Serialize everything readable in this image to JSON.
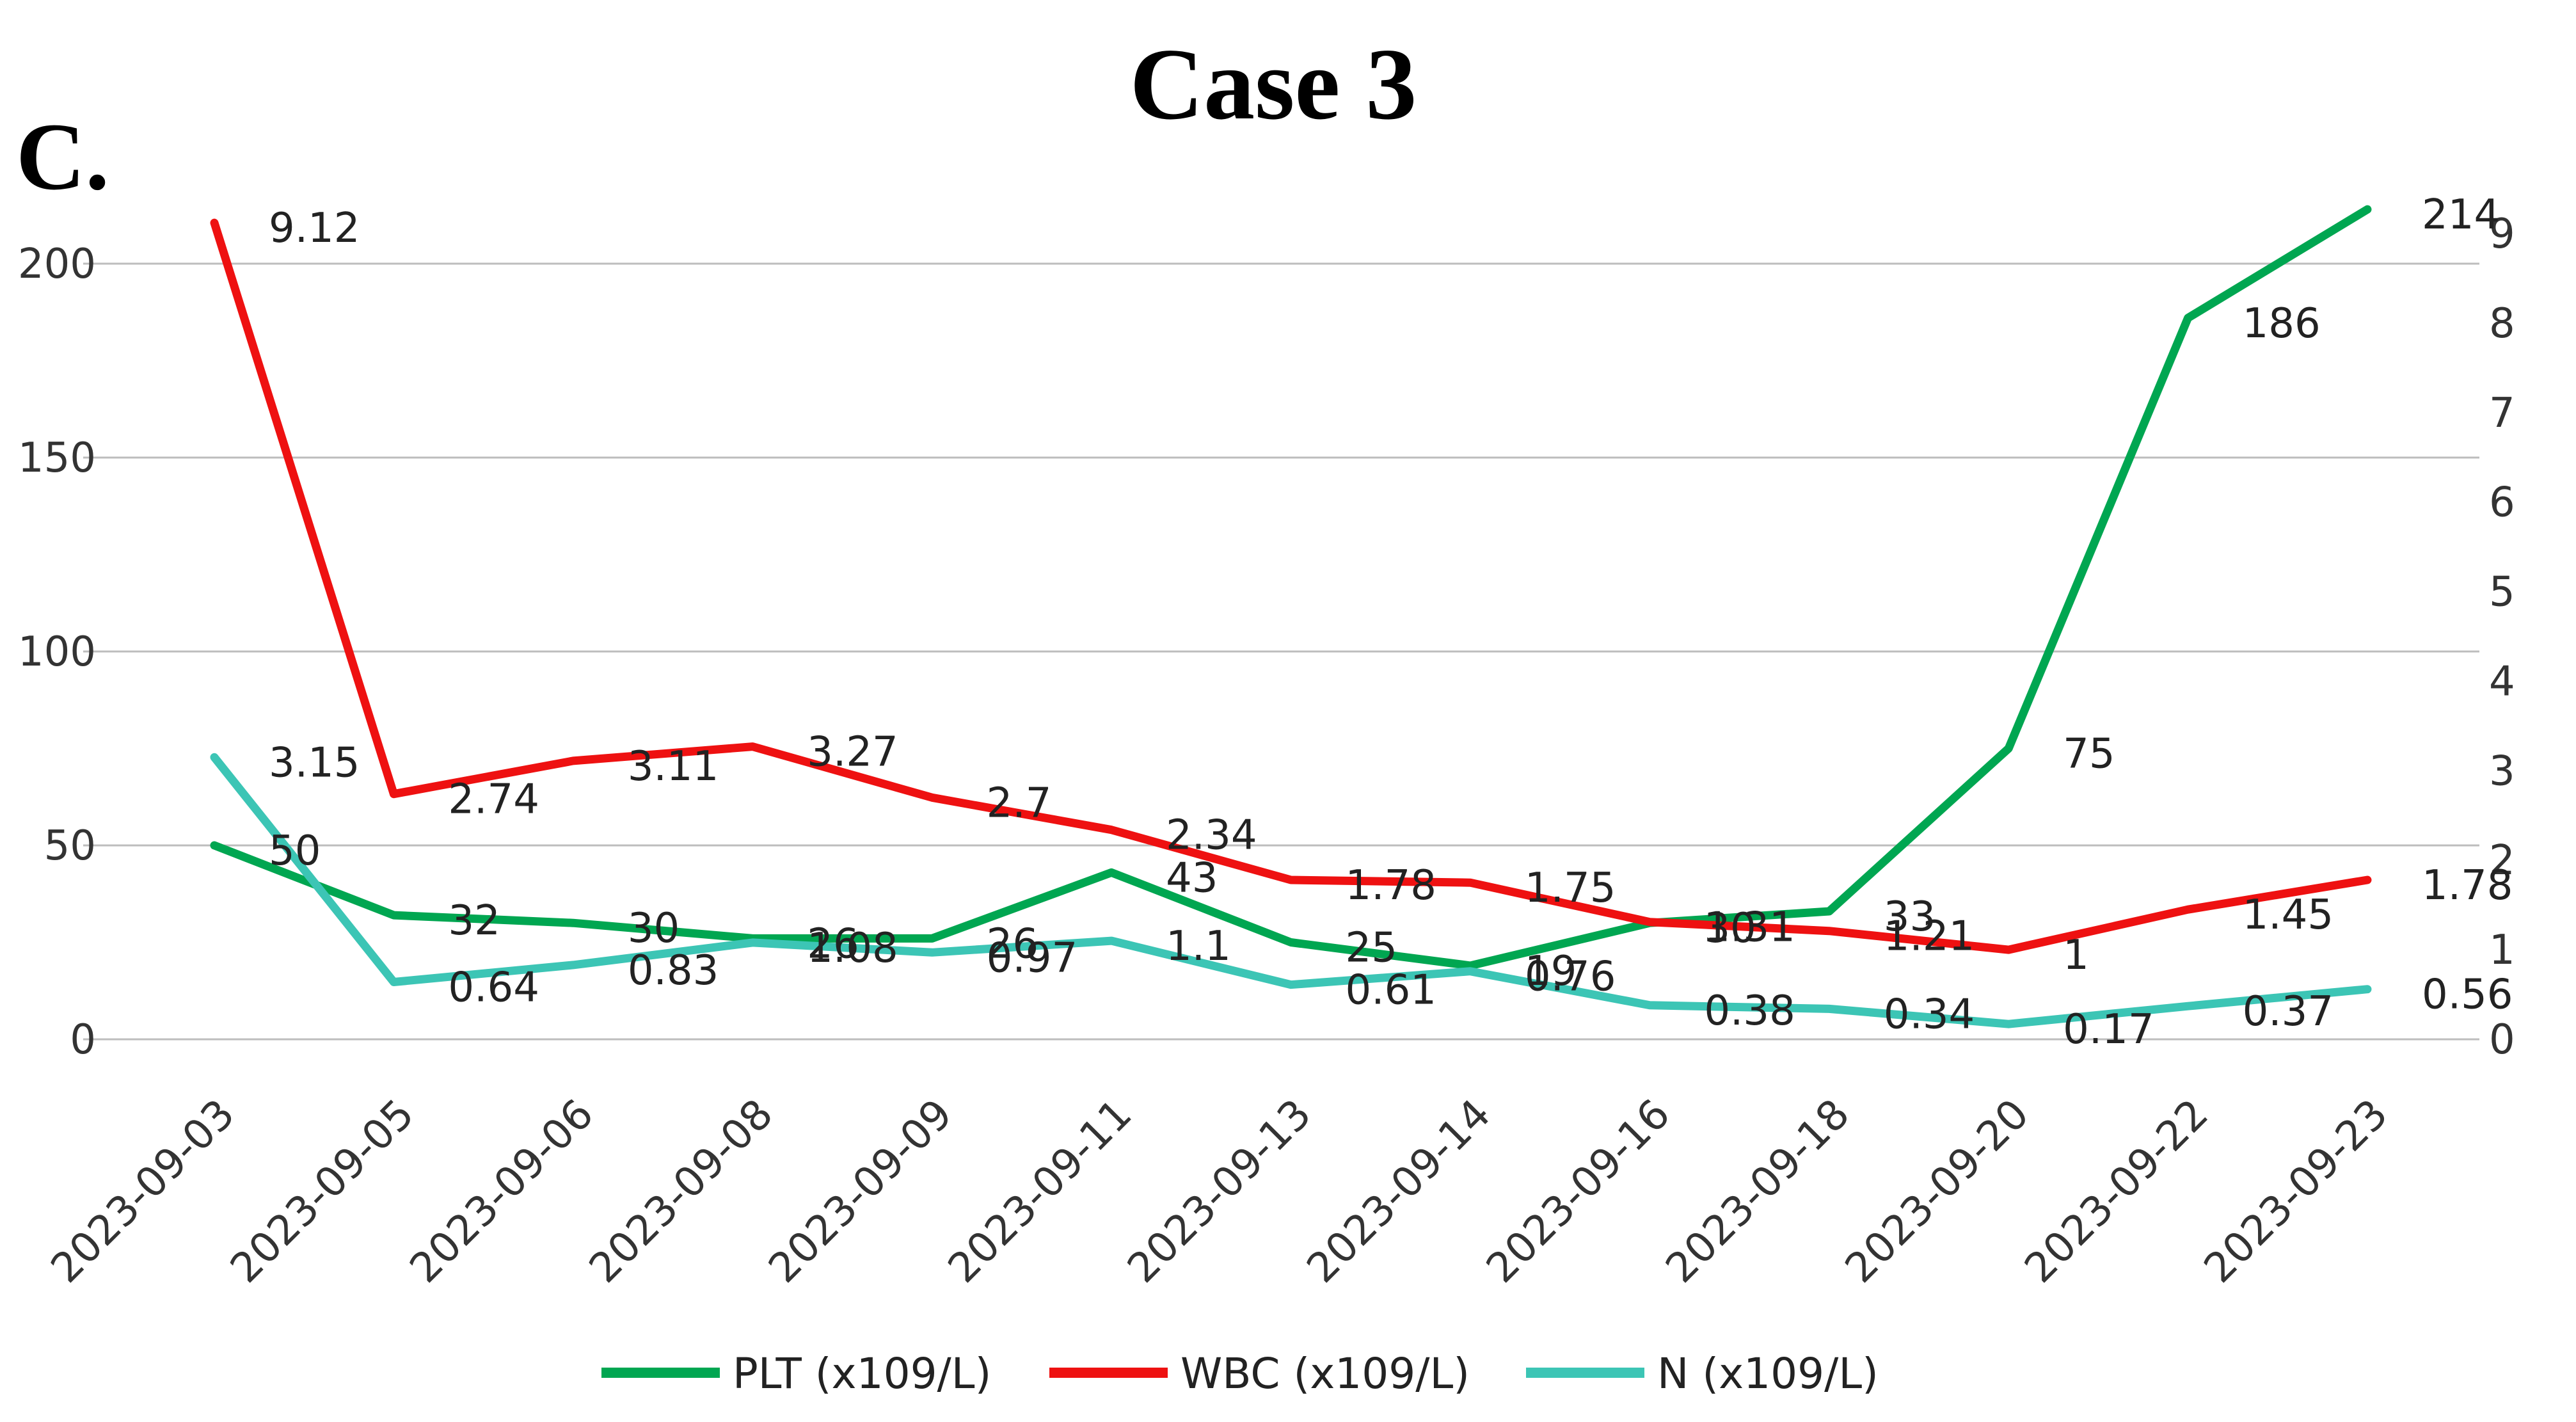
{
  "chart_data": {
    "type": "line",
    "title": "Case 3",
    "panel_label": "C.",
    "categories": [
      "2023-09-03",
      "2023-09-05",
      "2023-09-06",
      "2023-09-08",
      "2023-09-09",
      "2023-09-11",
      "2023-09-13",
      "2023-09-14",
      "2023-09-16",
      "2023-09-18",
      "2023-09-20",
      "2023-09-22",
      "2023-09-23"
    ],
    "y_left": {
      "min": 0,
      "max": 200,
      "ticks": [
        0,
        50,
        100,
        150,
        200
      ],
      "top": 212
    },
    "y_right": {
      "min": 0,
      "max": 9,
      "ticks": [
        0,
        1,
        2,
        3,
        4,
        5,
        6,
        7,
        8,
        9
      ],
      "top": 9.5
    },
    "series": [
      {
        "name": "PLT  (x109/L)",
        "color": "#00a651",
        "axis": "left",
        "values": [
          50,
          32,
          30,
          26,
          26,
          43,
          25,
          19,
          30,
          33,
          75,
          186,
          214
        ],
        "labels": [
          "50",
          "32",
          "30",
          "26",
          "26",
          "43",
          "25",
          "19",
          "30",
          "33",
          "75",
          "186",
          "214"
        ]
      },
      {
        "name": "WBC  (x109/L)",
        "color": "#ee1111",
        "axis": "right",
        "values": [
          9.12,
          2.74,
          3.11,
          3.27,
          2.7,
          2.34,
          1.78,
          1.75,
          1.31,
          1.21,
          1,
          1.45,
          1.78
        ],
        "labels": [
          "9.12",
          "2.74",
          "3.11",
          "3.27",
          "2.7",
          "2.34",
          "1.78",
          "1.75",
          "1.31",
          "1.21",
          "1",
          "1.45",
          "1.78"
        ]
      },
      {
        "name": "N  (x109/L)",
        "color": "#3cc5b5",
        "axis": "right",
        "values": [
          3.15,
          0.64,
          0.83,
          1.08,
          0.97,
          1.1,
          0.61,
          0.76,
          0.38,
          0.34,
          0.17,
          0.37,
          0.56
        ],
        "labels": [
          "3.15",
          "0.64",
          "0.83",
          "1.08",
          "0.97",
          "1.1",
          "0.61",
          "0.76",
          "0.38",
          "0.34",
          "0.17",
          "0.37",
          "0.56"
        ]
      }
    ],
    "legend_position": "bottom-center",
    "grid": true
  }
}
